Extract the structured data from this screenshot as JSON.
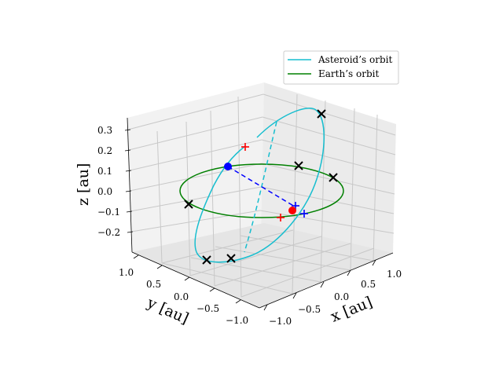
{
  "chart_data": {
    "type": "line",
    "title": "",
    "projection": "3d",
    "xlabel": "x [au]",
    "ylabel": "y [au]",
    "zlabel": "z [au]",
    "xlim": [
      -1.2,
      1.2
    ],
    "ylim": [
      -1.2,
      1.2
    ],
    "zlim": [
      -0.3,
      0.35
    ],
    "x_ticks": [
      "−1.0",
      "−0.5",
      "0.0",
      "0.5",
      "1.0"
    ],
    "y_ticks": [
      "1.0",
      "0.5",
      "0.0",
      "−0.5",
      "−1.0"
    ],
    "z_ticks": [
      "0.3",
      "0.2",
      "0.1",
      "0.0",
      "−0.1",
      "−0.2"
    ],
    "grid": true,
    "legend_position": "top-right",
    "colors": {
      "asteroid": "#17becf",
      "earth": "#008000",
      "black_marker": "#000000",
      "red_marker": "#ff0000",
      "blue_marker": "#0000ff",
      "link": "#0000ff"
    },
    "series": [
      {
        "name": "Asteroid’s orbit",
        "color": "#17becf"
      },
      {
        "name": "Earth’s orbit",
        "color": "#008000"
      }
    ],
    "marker_groups": [
      "black-x",
      "red-plus",
      "blue-plus",
      "blue-dot",
      "red-dot"
    ]
  }
}
